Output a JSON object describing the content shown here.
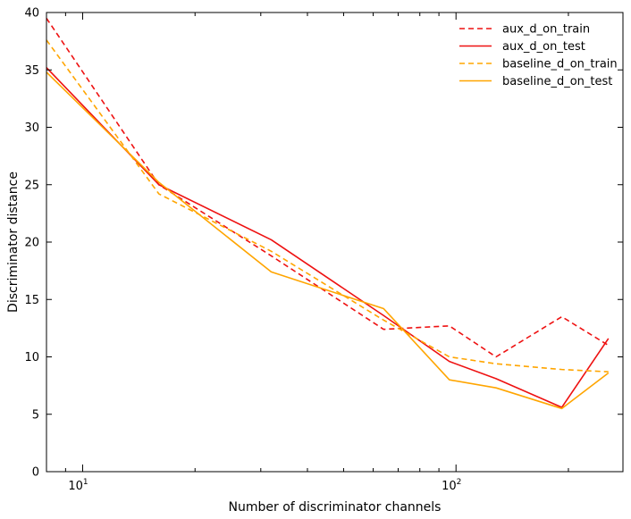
{
  "chart_data": {
    "type": "line",
    "title": "",
    "xlabel": "Number of discriminator channels",
    "ylabel": "Discriminator distance",
    "xscale": "log",
    "xlim": [
      8,
      280
    ],
    "ylim": [
      0,
      40
    ],
    "yticks": [
      0,
      5,
      10,
      15,
      20,
      25,
      30,
      35,
      40
    ],
    "xticks_major": [
      {
        "value": 10,
        "base": "10",
        "exp": "1"
      },
      {
        "value": 100,
        "base": "10",
        "exp": "2"
      }
    ],
    "legend_position": "top-right",
    "grid": false,
    "series": [
      {
        "name": "aux_d_on_train",
        "color": "#ee1111",
        "style": "dashed",
        "x": [
          8,
          16,
          32,
          64,
          96,
          128,
          192,
          256
        ],
        "y": [
          39.5,
          25.0,
          18.8,
          12.4,
          12.7,
          10.0,
          13.5,
          11.0
        ]
      },
      {
        "name": "aux_d_on_test",
        "color": "#ee1111",
        "style": "solid",
        "x": [
          8,
          16,
          32,
          64,
          96,
          128,
          192,
          256
        ],
        "y": [
          35.2,
          25.0,
          20.2,
          13.6,
          9.6,
          8.1,
          5.6,
          11.6
        ]
      },
      {
        "name": "baseline_d_on_train",
        "color": "#ffa500",
        "style": "dashed",
        "x": [
          8,
          16,
          32,
          64,
          96,
          128,
          192,
          256
        ],
        "y": [
          37.6,
          24.2,
          19.2,
          13.2,
          10.0,
          9.4,
          8.9,
          8.7
        ]
      },
      {
        "name": "baseline_d_on_test",
        "color": "#ffa500",
        "style": "solid",
        "x": [
          8,
          16,
          32,
          64,
          96,
          128,
          192,
          256
        ],
        "y": [
          34.8,
          25.2,
          17.4,
          14.2,
          8.0,
          7.3,
          5.5,
          8.6
        ]
      }
    ]
  }
}
